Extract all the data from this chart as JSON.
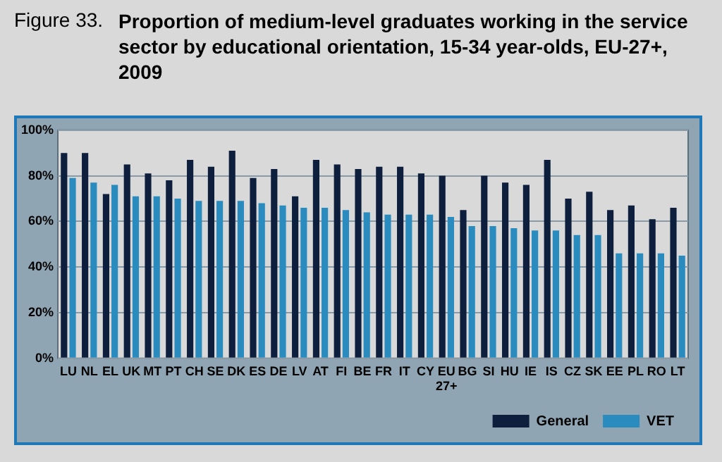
{
  "chart_data": {
    "type": "bar",
    "title": "Proportion of medium-level graduates working in the service sector by educational orientation, 15-34 year-olds, EU-27+, 2009",
    "annotations": [
      "Figure 33."
    ],
    "categories": [
      "LU",
      "NL",
      "EL",
      "UK",
      "MT",
      "PT",
      "CH",
      "SE",
      "DK",
      "ES",
      "DE",
      "LV",
      "AT",
      "FI",
      "BE",
      "FR",
      "IT",
      "CY",
      "EU 27+",
      "BG",
      "SI",
      "HU",
      "IE",
      "IS",
      "CZ",
      "SK",
      "EE",
      "PL",
      "RO",
      "LT"
    ],
    "series": [
      {
        "name": "General",
        "color": "#0d1f3c",
        "values": [
          90,
          90,
          72,
          85,
          81,
          78,
          87,
          84,
          91,
          79,
          83,
          71,
          87,
          85,
          83,
          84,
          84,
          81,
          80,
          65,
          80,
          77,
          76,
          87,
          70,
          73,
          65,
          67,
          61,
          66
        ]
      },
      {
        "name": "VET",
        "color": "#2a8bbf",
        "values": [
          79,
          77,
          76,
          71,
          71,
          70,
          69,
          69,
          69,
          68,
          67,
          66,
          66,
          65,
          64,
          63,
          63,
          63,
          62,
          58,
          58,
          57,
          56,
          56,
          54,
          54,
          46,
          46,
          46,
          45
        ]
      }
    ],
    "ylim": [
      0,
      100
    ],
    "yticks": [
      {
        "value": 0,
        "label": "0%"
      },
      {
        "value": 20,
        "label": "20%"
      },
      {
        "value": 40,
        "label": "40%"
      },
      {
        "value": 60,
        "label": "60%"
      },
      {
        "value": 80,
        "label": "80%"
      },
      {
        "value": 100,
        "label": "100%"
      }
    ],
    "grid": "y",
    "legend": "bottom right"
  }
}
